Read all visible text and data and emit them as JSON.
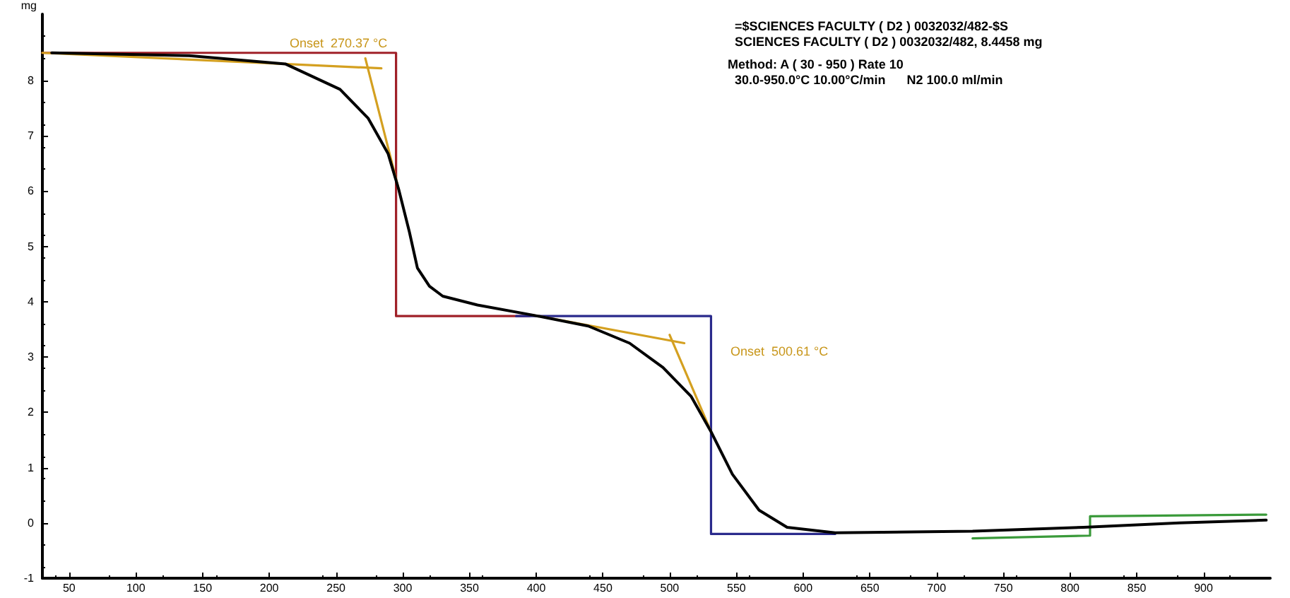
{
  "chart_data": {
    "type": "line",
    "ylabel": "mg",
    "xlim": [
      30,
      950
    ],
    "ylim": [
      -1,
      9.2
    ],
    "xticks": [
      50,
      100,
      150,
      200,
      250,
      300,
      350,
      400,
      450,
      500,
      550,
      600,
      650,
      700,
      750,
      800,
      850,
      900
    ],
    "yticks": [
      -1,
      0,
      1,
      2,
      3,
      4,
      5,
      6,
      7,
      8
    ],
    "grid": false,
    "marker": "none",
    "line_style": "solid",
    "series": [
      {
        "color": "#000000",
        "x": [
          37,
          140,
          212,
          253,
          274,
          289,
          297,
          305,
          311,
          320,
          330,
          356,
          397,
          439,
          470,
          495,
          516,
          531,
          547,
          567,
          588,
          624,
          727,
          810,
          882,
          947
        ],
        "values": [
          8.5,
          8.45,
          8.3,
          7.84,
          7.32,
          6.68,
          6.03,
          5.26,
          4.61,
          4.28,
          4.1,
          3.94,
          3.76,
          3.56,
          3.25,
          2.81,
          2.29,
          1.65,
          0.88,
          0.23,
          -0.08,
          -0.18,
          -0.15,
          -0.08,
          0.0,
          0.05
        ]
      },
      {
        "color": "#a02028",
        "x": [
          30,
          295,
          295,
          395
        ],
        "values": [
          8.5,
          8.5,
          3.74,
          3.74
        ]
      },
      {
        "color": "#2a2a8c",
        "x": [
          385,
          531,
          531,
          624
        ],
        "values": [
          3.74,
          3.74,
          -0.2,
          -0.2
        ]
      },
      {
        "color": "#d4a020",
        "x": [
          30,
          284
        ],
        "values": [
          8.5,
          8.22
        ]
      },
      {
        "color": "#d4a020",
        "x": [
          272,
          297
        ],
        "values": [
          8.4,
          6.03
        ]
      },
      {
        "color": "#d4a020",
        "x": [
          397,
          511
        ],
        "values": [
          3.76,
          3.25
        ]
      },
      {
        "color": "#d4a020",
        "x": [
          500,
          531
        ],
        "values": [
          3.4,
          1.65
        ]
      },
      {
        "color": "#3a9a3a",
        "x": [
          727,
          815,
          815,
          947
        ],
        "values": [
          -0.28,
          -0.23,
          0.12,
          0.15
        ]
      }
    ],
    "annotations": [
      "Onset  270.37 °C",
      "Onset  500.61 °C",
      "=$SCIENCES FACULTY ( D2 ) 0032032/482-$S",
      "SCIENCES FACULTY ( D2 ) 0032032/482, 8.4458 mg",
      "Method: A ( 30 - 950 ) Rate 10",
      "30.0-950.0°C 10.00°C/min      N2 100.0 ml/min"
    ]
  }
}
